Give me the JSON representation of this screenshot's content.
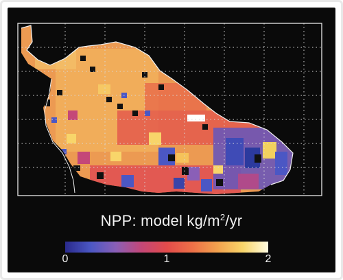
{
  "figure": {
    "title_prefix": "NPP: model kg/m",
    "title_exponent": "2",
    "title_suffix": "/yr"
  },
  "colorbar": {
    "min": 0,
    "max": 2,
    "ticks": [
      {
        "label": "0",
        "value": 0
      },
      {
        "label": "1",
        "value": 1
      },
      {
        "label": "2",
        "value": 2
      }
    ],
    "stops": [
      "#2a2a8c",
      "#4b57c4",
      "#8a5fb7",
      "#c44778",
      "#e24b4b",
      "#ee7048",
      "#f3a24e",
      "#f8d56a",
      "#fffce0"
    ]
  },
  "colors": {
    "background": "#0a0a0a",
    "coastline": "#f0f0f0",
    "gridline": "#dcdcdc",
    "land_base": "#ec9a52"
  }
}
